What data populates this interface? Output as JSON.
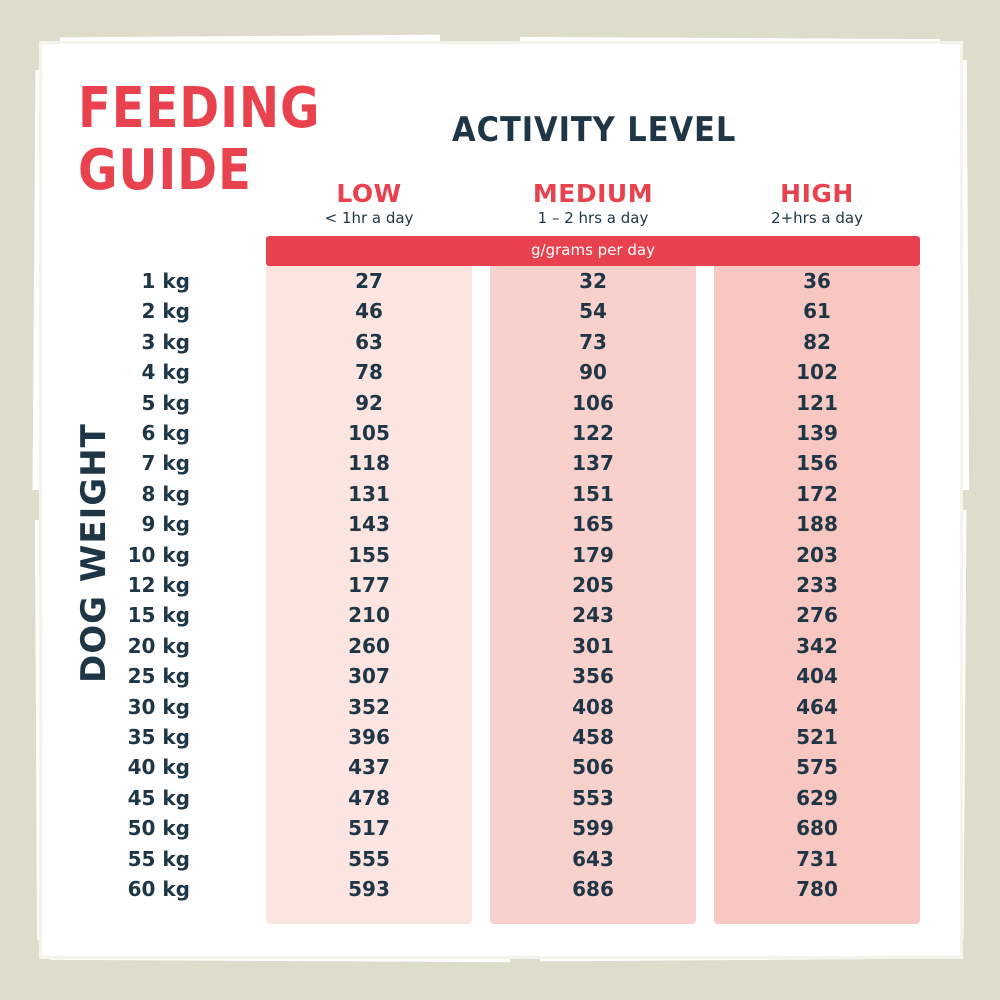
{
  "title_line1": "FEEDING",
  "title_line2": "GUIDE",
  "activity_heading": "ACTIVITY LEVEL",
  "levels": [
    {
      "name": "LOW",
      "sub": "< 1hr a day"
    },
    {
      "name": "MEDIUM",
      "sub": "1 – 2 hrs a day"
    },
    {
      "name": "HIGH",
      "sub": "2+hrs a day"
    }
  ],
  "unit_label": "g/grams per day",
  "weight_axis_label": "DOG WEIGHT",
  "rows": [
    {
      "weight": "1 kg",
      "low": "27",
      "medium": "32",
      "high": "36"
    },
    {
      "weight": "2 kg",
      "low": "46",
      "medium": "54",
      "high": "61"
    },
    {
      "weight": "3 kg",
      "low": "63",
      "medium": "73",
      "high": "82"
    },
    {
      "weight": "4 kg",
      "low": "78",
      "medium": "90",
      "high": "102"
    },
    {
      "weight": "5 kg",
      "low": "92",
      "medium": "106",
      "high": "121"
    },
    {
      "weight": "6 kg",
      "low": "105",
      "medium": "122",
      "high": "139"
    },
    {
      "weight": "7 kg",
      "low": "118",
      "medium": "137",
      "high": "156"
    },
    {
      "weight": "8 kg",
      "low": "131",
      "medium": "151",
      "high": "172"
    },
    {
      "weight": "9 kg",
      "low": "143",
      "medium": "165",
      "high": "188"
    },
    {
      "weight": "10 kg",
      "low": "155",
      "medium": "179",
      "high": "203"
    },
    {
      "weight": "12 kg",
      "low": "177",
      "medium": "205",
      "high": "233"
    },
    {
      "weight": "15 kg",
      "low": "210",
      "medium": "243",
      "high": "276"
    },
    {
      "weight": "20 kg",
      "low": "260",
      "medium": "301",
      "high": "342"
    },
    {
      "weight": "25 kg",
      "low": "307",
      "medium": "356",
      "high": "404"
    },
    {
      "weight": "30 kg",
      "low": "352",
      "medium": "408",
      "high": "464"
    },
    {
      "weight": "35 kg",
      "low": "396",
      "medium": "458",
      "high": "521"
    },
    {
      "weight": "40 kg",
      "low": "437",
      "medium": "506",
      "high": "575"
    },
    {
      "weight": "45 kg",
      "low": "478",
      "medium": "553",
      "high": "629"
    },
    {
      "weight": "50 kg",
      "low": "517",
      "medium": "599",
      "high": "680"
    },
    {
      "weight": "55 kg",
      "low": "555",
      "medium": "643",
      "high": "731"
    },
    {
      "weight": "60 kg",
      "low": "593",
      "medium": "686",
      "high": "780"
    }
  ],
  "colors": {
    "accent": "#e8424f",
    "text": "#1f3646",
    "low_col": "#fce4e1",
    "medium_col": "#f9d1cc",
    "high_col": "#f8c7c1",
    "background": "#dedccb"
  }
}
